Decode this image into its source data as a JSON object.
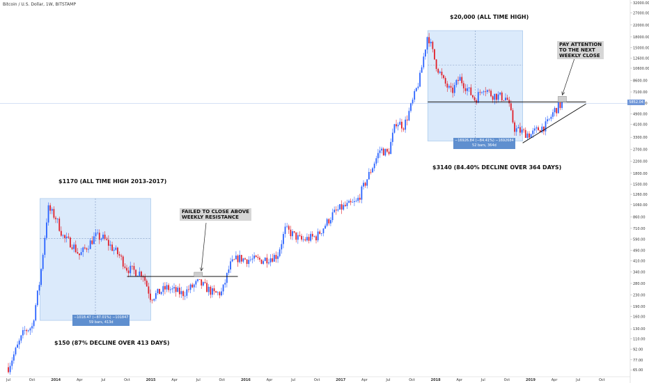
{
  "header": {
    "symbol_title": "Bitcoin / U.S. Dollar, 1W, BITSTAMP"
  },
  "annotations": {
    "ath_2017": "$20,000 (ALL TIME HIGH)",
    "ath_2013": "$1170 (ALL TIME HIGH 2013-2017)",
    "decline_2018": "$3140 (84.40% DECLINE OVER 364 DAYS)",
    "decline_2014": "$150 (87% DECLINE OVER 413 DAYS)",
    "failed_note": "FAILED TO CLOSE ABOVE\nWEEKLY RESISTANCE",
    "attention_note": "PAY ATTENTION\nTO THE NEXT\nWEEKLY CLOSE",
    "measure_2014": "−1018.47 (−87.01%) −101847\n59 bars, 413d",
    "measure_2018": "−16926.84 (−84.41%) −1692684\n52 bars, 364d"
  },
  "price_tag": "5852.04",
  "colors": {
    "up": "#2962ff",
    "down": "#e0202a",
    "box_fill": "#dbeafb",
    "box_stroke": "#9bbfe8",
    "price_line": "#6f96d8"
  },
  "chart_data": {
    "type": "candlestick",
    "scale": "log",
    "title": "Bitcoin / U.S. Dollar, 1W, BITSTAMP",
    "ylim": [
      60,
      32000
    ],
    "y_ticks": [
      "32000.00",
      "27000.00",
      "22000.00",
      "18000.00",
      "15000.00",
      "12600.00",
      "10600.00",
      "8600.00",
      "7100.00",
      "5900.00",
      "4900.00",
      "4100.00",
      "3300.00",
      "2700.00",
      "2200.00",
      "1800.00",
      "1500.00",
      "1260.00",
      "1060.00",
      "860.00",
      "710.00",
      "590.00",
      "490.00",
      "410.00",
      "340.00",
      "280.00",
      "230.00",
      "190.00",
      "160.00",
      "130.00",
      "110.00",
      "92.00",
      "77.00",
      "65.00"
    ],
    "x_ticks": [
      "Jul",
      "Oct",
      "2014",
      "Apr",
      "Jul",
      "Oct",
      "2015",
      "Apr",
      "Jul",
      "Oct",
      "2016",
      "Apr",
      "Jul",
      "Oct",
      "2017",
      "Apr",
      "Jul",
      "Oct",
      "2018",
      "Apr",
      "Jul",
      "Oct",
      "2019",
      "Apr",
      "Jul",
      "Oct"
    ],
    "x_range": [
      "2013-07",
      "2019-12"
    ],
    "last_price": 5852.04,
    "price_path_waypoints": [
      {
        "date": "2013-07",
        "price": 68
      },
      {
        "date": "2013-09",
        "price": 125
      },
      {
        "date": "2013-10",
        "price": 135
      },
      {
        "date": "2013-11",
        "price": 300
      },
      {
        "date": "2013-12",
        "price": 1000
      },
      {
        "date": "2014-01",
        "price": 850
      },
      {
        "date": "2014-02",
        "price": 600
      },
      {
        "date": "2014-03",
        "price": 550
      },
      {
        "date": "2014-04",
        "price": 450
      },
      {
        "date": "2014-06",
        "price": 620
      },
      {
        "date": "2014-07",
        "price": 600
      },
      {
        "date": "2014-09",
        "price": 450
      },
      {
        "date": "2014-10",
        "price": 360
      },
      {
        "date": "2014-12",
        "price": 330
      },
      {
        "date": "2015-01",
        "price": 220
      },
      {
        "date": "2015-03",
        "price": 260
      },
      {
        "date": "2015-05",
        "price": 235
      },
      {
        "date": "2015-07",
        "price": 285
      },
      {
        "date": "2015-08",
        "price": 260
      },
      {
        "date": "2015-09",
        "price": 235
      },
      {
        "date": "2015-10",
        "price": 240
      },
      {
        "date": "2015-11",
        "price": 380
      },
      {
        "date": "2015-12",
        "price": 430
      },
      {
        "date": "2016-01",
        "price": 420
      },
      {
        "date": "2016-03",
        "price": 415
      },
      {
        "date": "2016-05",
        "price": 450
      },
      {
        "date": "2016-06",
        "price": 700
      },
      {
        "date": "2016-08",
        "price": 580
      },
      {
        "date": "2016-10",
        "price": 620
      },
      {
        "date": "2016-12",
        "price": 900
      },
      {
        "date": "2017-01",
        "price": 1000
      },
      {
        "date": "2017-03",
        "price": 1100
      },
      {
        "date": "2017-05",
        "price": 2000
      },
      {
        "date": "2017-06",
        "price": 2700
      },
      {
        "date": "2017-07",
        "price": 2500
      },
      {
        "date": "2017-08",
        "price": 4300
      },
      {
        "date": "2017-09",
        "price": 4000
      },
      {
        "date": "2017-10",
        "price": 5800
      },
      {
        "date": "2017-11",
        "price": 9000
      },
      {
        "date": "2017-12",
        "price": 19000
      },
      {
        "date": "2018-01",
        "price": 11500
      },
      {
        "date": "2018-02",
        "price": 8500
      },
      {
        "date": "2018-03",
        "price": 7000
      },
      {
        "date": "2018-04",
        "price": 9000
      },
      {
        "date": "2018-05",
        "price": 7500
      },
      {
        "date": "2018-06",
        "price": 6200
      },
      {
        "date": "2018-07",
        "price": 7800
      },
      {
        "date": "2018-08",
        "price": 6800
      },
      {
        "date": "2018-10",
        "price": 6400
      },
      {
        "date": "2018-11",
        "price": 3800
      },
      {
        "date": "2018-12",
        "price": 3600
      },
      {
        "date": "2019-01",
        "price": 3450
      },
      {
        "date": "2019-02",
        "price": 3800
      },
      {
        "date": "2019-03",
        "price": 4050
      },
      {
        "date": "2019-04",
        "price": 5200
      },
      {
        "date": "2019-05",
        "price": 5852
      }
    ],
    "drawings": {
      "resistance_2015": {
        "price": 315,
        "from": "2014-10",
        "to": "2015-12"
      },
      "resistance_2019": {
        "price": 6000,
        "from": "2017-12",
        "to": "2019-08"
      },
      "range_box_2014": {
        "from": "2013-11",
        "to": "2015-01",
        "high": 1175,
        "low": 150
      },
      "range_box_2018": {
        "from": "2017-12",
        "to": "2018-12",
        "high": 20000,
        "low": 3100
      },
      "ascending_trendline": [
        {
          "date": "2018-12",
          "price": 3000
        },
        {
          "date": "2019-08",
          "price": 5800
        }
      ]
    }
  }
}
